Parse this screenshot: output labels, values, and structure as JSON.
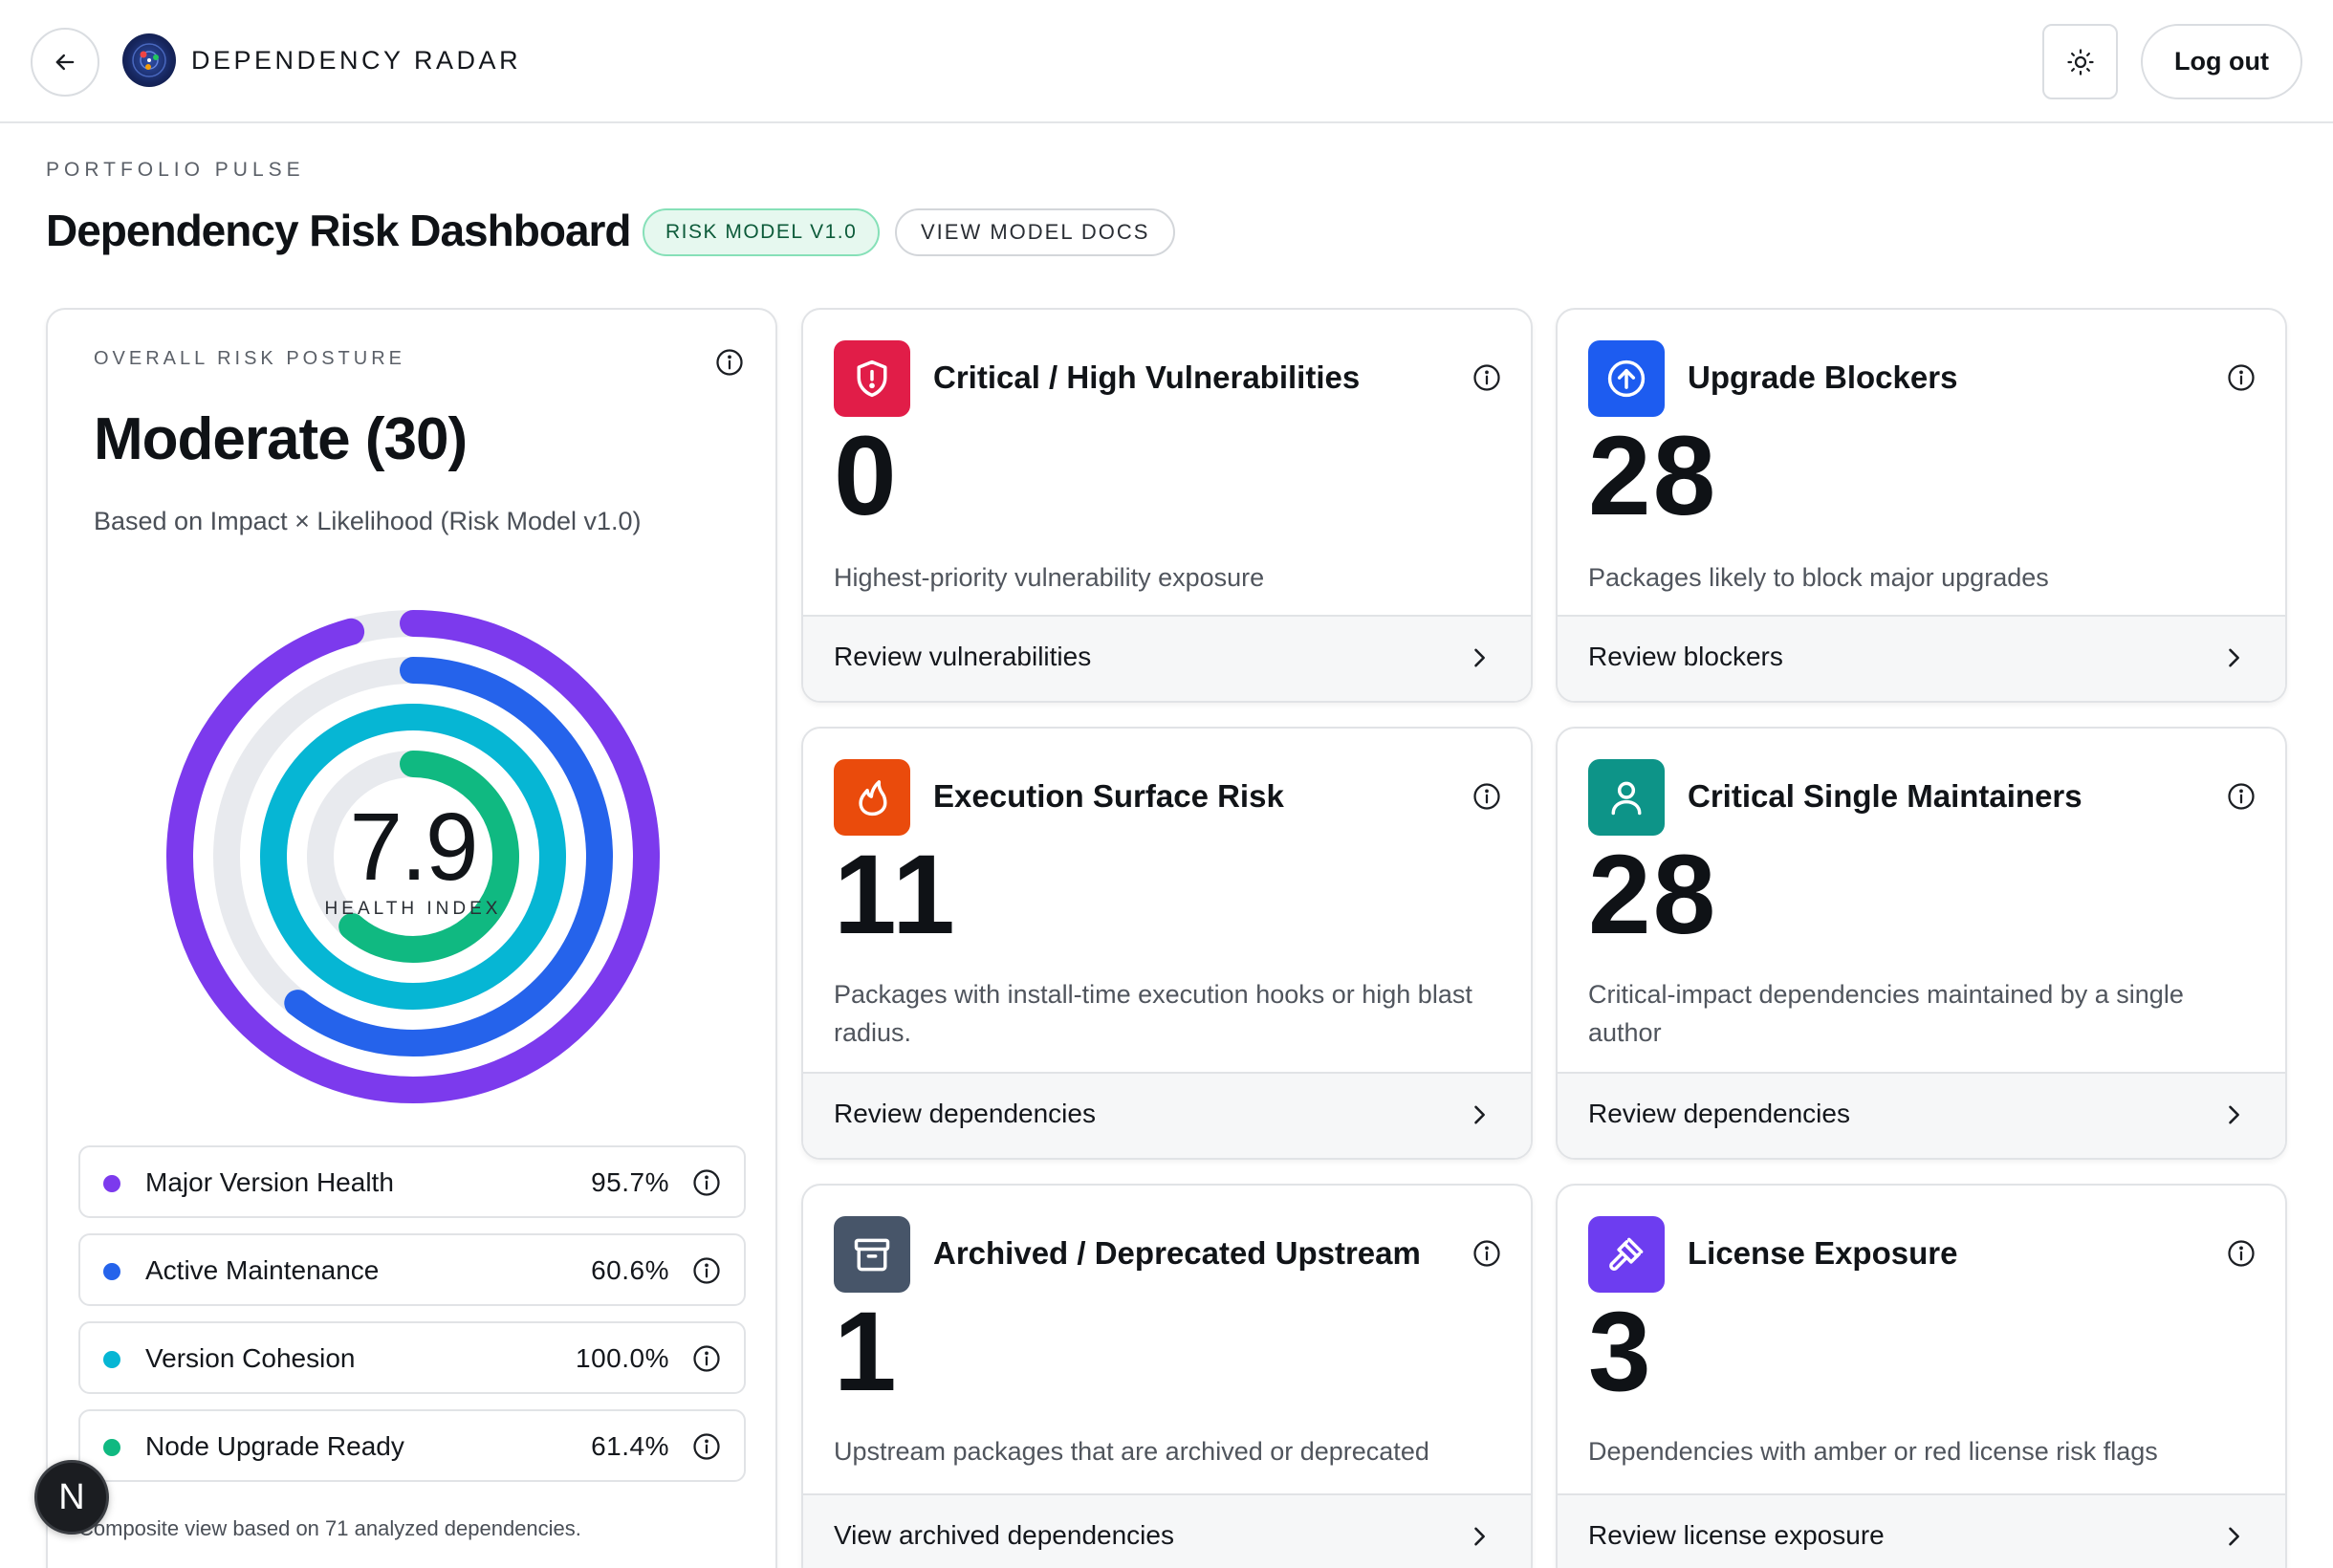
{
  "header": {
    "app_title": "DEPENDENCY RADAR",
    "logout_label": "Log out",
    "icons": {
      "back": "arrow-left-icon",
      "theme": "sun-icon",
      "logo": "radar-logo"
    }
  },
  "page": {
    "eyebrow": "PORTFOLIO PULSE",
    "title": "Dependency Risk Dashboard",
    "model_badge": "RISK MODEL V1.0",
    "docs_button": "VIEW MODEL DOCS"
  },
  "posture": {
    "eyebrow": "OVERALL RISK POSTURE",
    "headline": "Moderate (30)",
    "subline": "Based on Impact × Likelihood (Risk Model v1.0)",
    "gauge_value": "7.9",
    "gauge_label": "HEALTH INDEX",
    "metrics": [
      {
        "label": "Major Version Health",
        "value": "95.7%",
        "fraction": 0.957,
        "color": "#7c3aed"
      },
      {
        "label": "Active Maintenance",
        "value": "60.6%",
        "fraction": 0.606,
        "color": "#2563eb"
      },
      {
        "label": "Version Cohesion",
        "value": "100.0%",
        "fraction": 1.0,
        "color": "#06b6d4"
      },
      {
        "label": "Node Upgrade Ready",
        "value": "61.4%",
        "fraction": 0.614,
        "color": "#10b981"
      }
    ],
    "footnote": "Composite view based on 71 analyzed dependencies."
  },
  "cards": [
    {
      "title": "Critical / High Vulnerabilities",
      "value": "0",
      "description": "Highest-priority vulnerability exposure",
      "action": "Review vulnerabilities",
      "icon": "shield-alert-icon",
      "color": "#e11d48"
    },
    {
      "title": "Upgrade Blockers",
      "value": "28",
      "description": "Packages likely to block major upgrades",
      "action": "Review blockers",
      "icon": "arrow-up-circle-icon",
      "color": "#1d5cf0"
    },
    {
      "title": "Execution Surface Risk",
      "value": "11",
      "description": "Packages with install-time execution hooks or high blast radius.",
      "action": "Review dependencies",
      "icon": "flame-icon",
      "color": "#ea4b0c"
    },
    {
      "title": "Critical Single Maintainers",
      "value": "28",
      "description": "Critical-impact dependencies maintained by a single author",
      "action": "Review dependencies",
      "icon": "user-icon",
      "color": "#0d9488"
    },
    {
      "title": "Archived / Deprecated Upstream",
      "value": "1",
      "description": "Upstream packages that are archived or deprecated",
      "action": "View archived dependencies",
      "icon": "archive-icon",
      "color": "#475569"
    },
    {
      "title": "License Exposure",
      "value": "3",
      "description": "Dependencies with amber or red license risk flags",
      "action": "Review license exposure",
      "icon": "gavel-icon",
      "color": "#6d3df0"
    }
  ],
  "dev_badge": "N"
}
